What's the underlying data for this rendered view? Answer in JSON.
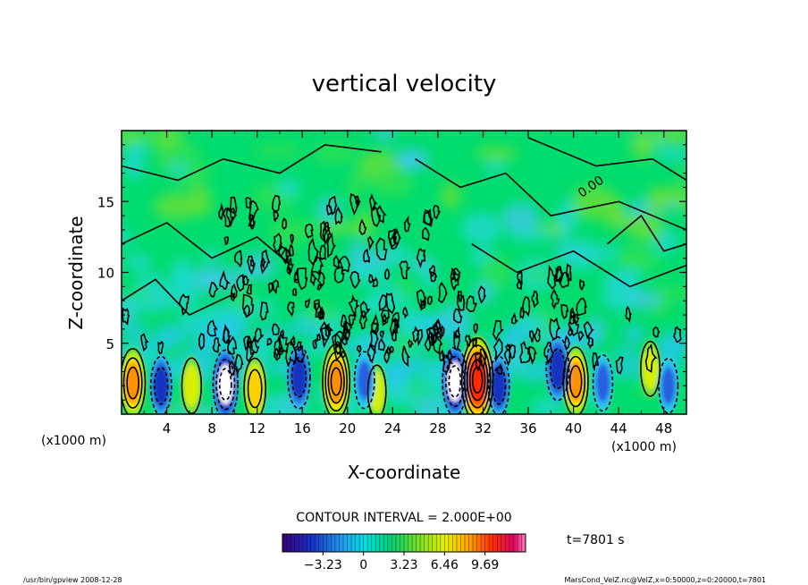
{
  "chart_data": {
    "type": "heatmap",
    "title": "vertical velocity",
    "xlabel": "X-coordinate",
    "ylabel": "Z-coordinate",
    "x_unit": "(x1000 m)",
    "x_ticks": [
      4,
      8,
      12,
      16,
      20,
      24,
      28,
      32,
      36,
      40,
      44,
      48
    ],
    "x_tick_labels": [
      "4",
      "8",
      "12",
      "16",
      "20",
      "24",
      "28",
      "32",
      "36",
      "40",
      "44",
      "48"
    ],
    "y_ticks": [
      5,
      10,
      15
    ],
    "y_tick_labels": [
      "5",
      "10",
      "15"
    ],
    "xlim": [
      0,
      50
    ],
    "ylim": [
      0,
      20
    ],
    "contour_interval_text": "CONTOUR INTERVAL = 2.000E+00",
    "contour_label": "0.00",
    "colorbar": {
      "ticks": [
        -3.23,
        0,
        3.23,
        6.46,
        9.69
      ],
      "tick_labels": [
        "−3.23",
        "0",
        "3.23",
        "6.46",
        "9.69"
      ],
      "range": [
        -6.46,
        12.92
      ]
    },
    "time_label": "t=7801 s",
    "updrafts": [
      {
        "x": 1.0,
        "z": 2.2,
        "w": 6.5
      },
      {
        "x": 6.2,
        "z": 2.0,
        "w": 3.2
      },
      {
        "x": 11.8,
        "z": 1.8,
        "w": 4.5
      },
      {
        "x": 19.0,
        "z": 2.3,
        "w": 8.0
      },
      {
        "x": 22.6,
        "z": 1.6,
        "w": 2.4
      },
      {
        "x": 31.5,
        "z": 2.4,
        "w": 10.5
      },
      {
        "x": 40.2,
        "z": 2.3,
        "w": 6.5
      },
      {
        "x": 46.8,
        "z": 3.2,
        "w": 3.0
      }
    ],
    "downdrafts": [
      {
        "x": 3.5,
        "z": 2.0,
        "w": -4.0
      },
      {
        "x": 9.2,
        "z": 2.1,
        "w": -6.5
      },
      {
        "x": 15.7,
        "z": 2.6,
        "w": -5.0
      },
      {
        "x": 21.5,
        "z": 2.4,
        "w": -3.5
      },
      {
        "x": 29.5,
        "z": 2.3,
        "w": -6.4
      },
      {
        "x": 33.4,
        "z": 2.0,
        "w": -4.0
      },
      {
        "x": 38.6,
        "z": 3.2,
        "w": -5.2
      },
      {
        "x": 42.6,
        "z": 2.2,
        "w": -3.3
      },
      {
        "x": 48.4,
        "z": 2.0,
        "w": -3.0
      }
    ],
    "colors": {
      "background_field": "#00dc6e",
      "frame": "#000000"
    }
  },
  "footer": {
    "left": "/usr/bin/gpview   2008-12-28",
    "right": "MarsCond_VelZ.nc@VelZ,x=0:50000,z=0:20000,t=7801"
  }
}
